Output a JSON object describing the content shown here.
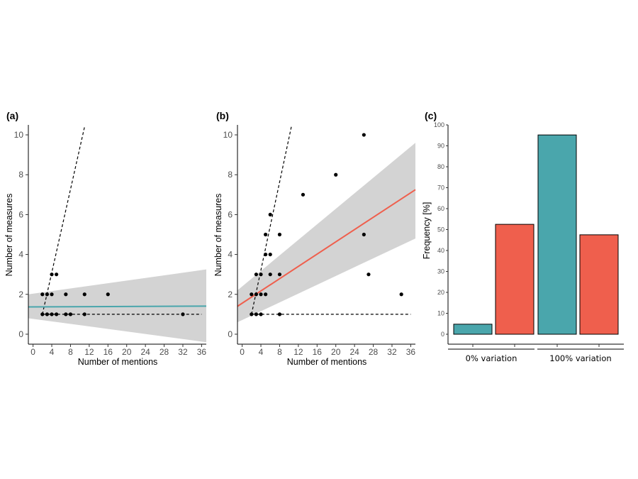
{
  "colors": {
    "teal": "#4aa6ac",
    "red": "#ef5f4d",
    "band": "#d3d3d3",
    "points": "#000000"
  },
  "chart_data": [
    {
      "panel": "(a)",
      "type": "scatter",
      "xlabel": "Number of mentions",
      "ylabel": "Number of measures",
      "xlim": [
        -1,
        37
      ],
      "ylim": [
        -0.5,
        10.5
      ],
      "xticks": [
        0,
        4,
        8,
        12,
        16,
        20,
        24,
        28,
        32,
        36
      ],
      "yticks": [
        0,
        2,
        4,
        6,
        8,
        10
      ],
      "points": [
        [
          2,
          1
        ],
        [
          2,
          2
        ],
        [
          3,
          1
        ],
        [
          3,
          2
        ],
        [
          4,
          1
        ],
        [
          4,
          2
        ],
        [
          4,
          3
        ],
        [
          5,
          1
        ],
        [
          5,
          3
        ],
        [
          7,
          1
        ],
        [
          7,
          2
        ],
        [
          8,
          1
        ],
        [
          11,
          1
        ],
        [
          11,
          2
        ],
        [
          16,
          2
        ],
        [
          32,
          1
        ]
      ],
      "fit_line": {
        "color": "teal",
        "y_at_xmin": 1.37,
        "y_at_xmax": 1.41
      },
      "confidence_band": {
        "upper_at_xmin": 2.0,
        "upper_at_xmax": 3.25,
        "lower_at_xmin": 0.8,
        "lower_at_xmax": -0.4
      },
      "dashed_lines": [
        {
          "from": [
            2,
            1
          ],
          "to": [
            36,
            1
          ]
        },
        {
          "from": [
            2,
            1
          ],
          "to": [
            11,
            10.4
          ]
        }
      ]
    },
    {
      "panel": "(b)",
      "type": "scatter",
      "xlabel": "Number of mentions",
      "ylabel": "Number of measures",
      "xlim": [
        -1,
        37
      ],
      "ylim": [
        -0.5,
        10.5
      ],
      "xticks": [
        0,
        4,
        8,
        12,
        16,
        20,
        24,
        28,
        32,
        36
      ],
      "yticks": [
        0,
        2,
        4,
        6,
        8,
        10
      ],
      "points": [
        [
          2,
          1
        ],
        [
          2,
          2
        ],
        [
          3,
          1
        ],
        [
          3,
          2
        ],
        [
          3,
          3
        ],
        [
          4,
          1
        ],
        [
          4,
          2
        ],
        [
          4,
          3
        ],
        [
          5,
          2
        ],
        [
          5,
          4
        ],
        [
          5,
          5
        ],
        [
          6,
          3
        ],
        [
          6,
          4
        ],
        [
          6,
          6
        ],
        [
          8,
          1
        ],
        [
          8,
          3
        ],
        [
          8,
          5
        ],
        [
          13,
          7
        ],
        [
          20,
          8
        ],
        [
          26,
          5
        ],
        [
          26,
          10
        ],
        [
          27,
          3
        ],
        [
          34,
          2
        ]
      ],
      "fit_line": {
        "color": "red",
        "y_at_xmin": 1.4,
        "y_at_xmax": 7.25
      },
      "confidence_band": {
        "upper_at_xmin": 2.2,
        "upper_at_xmax": 9.6,
        "lower_at_xmin": 0.6,
        "lower_at_xmax": 4.8
      },
      "dashed_lines": [
        {
          "from": [
            2,
            1
          ],
          "to": [
            36,
            1
          ]
        },
        {
          "from": [
            2,
            1
          ],
          "to": [
            10.5,
            10.4
          ]
        }
      ]
    },
    {
      "panel": "(c)",
      "type": "bar",
      "ylabel": "Frequency [%]",
      "ylim": [
        0,
        100
      ],
      "yticks": [
        0,
        10,
        20,
        30,
        40,
        50,
        60,
        70,
        80,
        90,
        100
      ],
      "groups": [
        "0% variation",
        "100% variation"
      ],
      "bars": [
        {
          "group": "0% variation",
          "color": "teal",
          "value": 4.8
        },
        {
          "group": "0% variation",
          "color": "red",
          "value": 52.5
        },
        {
          "group": "100% variation",
          "color": "teal",
          "value": 95.2
        },
        {
          "group": "100% variation",
          "color": "red",
          "value": 47.5
        }
      ]
    }
  ]
}
